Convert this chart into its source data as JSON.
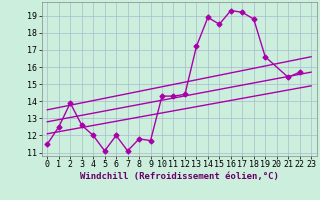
{
  "xlabel": "Windchill (Refroidissement éolien,°C)",
  "background_color": "#cceedd",
  "grid_color": "#aabbcc",
  "line_color": "#aa00aa",
  "xlim": [
    -0.5,
    23.5
  ],
  "ylim": [
    10.8,
    19.8
  ],
  "xticks": [
    0,
    1,
    2,
    3,
    4,
    5,
    6,
    7,
    8,
    9,
    10,
    11,
    12,
    13,
    14,
    15,
    16,
    17,
    18,
    19,
    20,
    21,
    22,
    23
  ],
  "yticks": [
    11,
    12,
    13,
    14,
    15,
    16,
    17,
    18,
    19
  ],
  "main_line_x": [
    0,
    1,
    2,
    3,
    4,
    5,
    6,
    7,
    8,
    9,
    10,
    11,
    12,
    13,
    14,
    15,
    16,
    17,
    18,
    19,
    21,
    22
  ],
  "main_line_y": [
    11.5,
    12.5,
    13.9,
    12.6,
    12.0,
    11.1,
    12.0,
    11.1,
    11.8,
    11.7,
    14.3,
    14.3,
    14.4,
    17.2,
    18.9,
    18.5,
    19.3,
    19.2,
    18.8,
    16.6,
    15.4,
    15.7
  ],
  "upper_line_x": [
    0,
    23
  ],
  "upper_line_y": [
    13.5,
    16.6
  ],
  "mid_line_x": [
    0,
    23
  ],
  "mid_line_y": [
    12.8,
    15.7
  ],
  "lower_line_x": [
    0,
    23
  ],
  "lower_line_y": [
    12.1,
    14.9
  ],
  "marker": "D",
  "markersize": 2.5,
  "linewidth": 1.0,
  "tick_fontsize": 6,
  "label_fontsize": 6.5
}
